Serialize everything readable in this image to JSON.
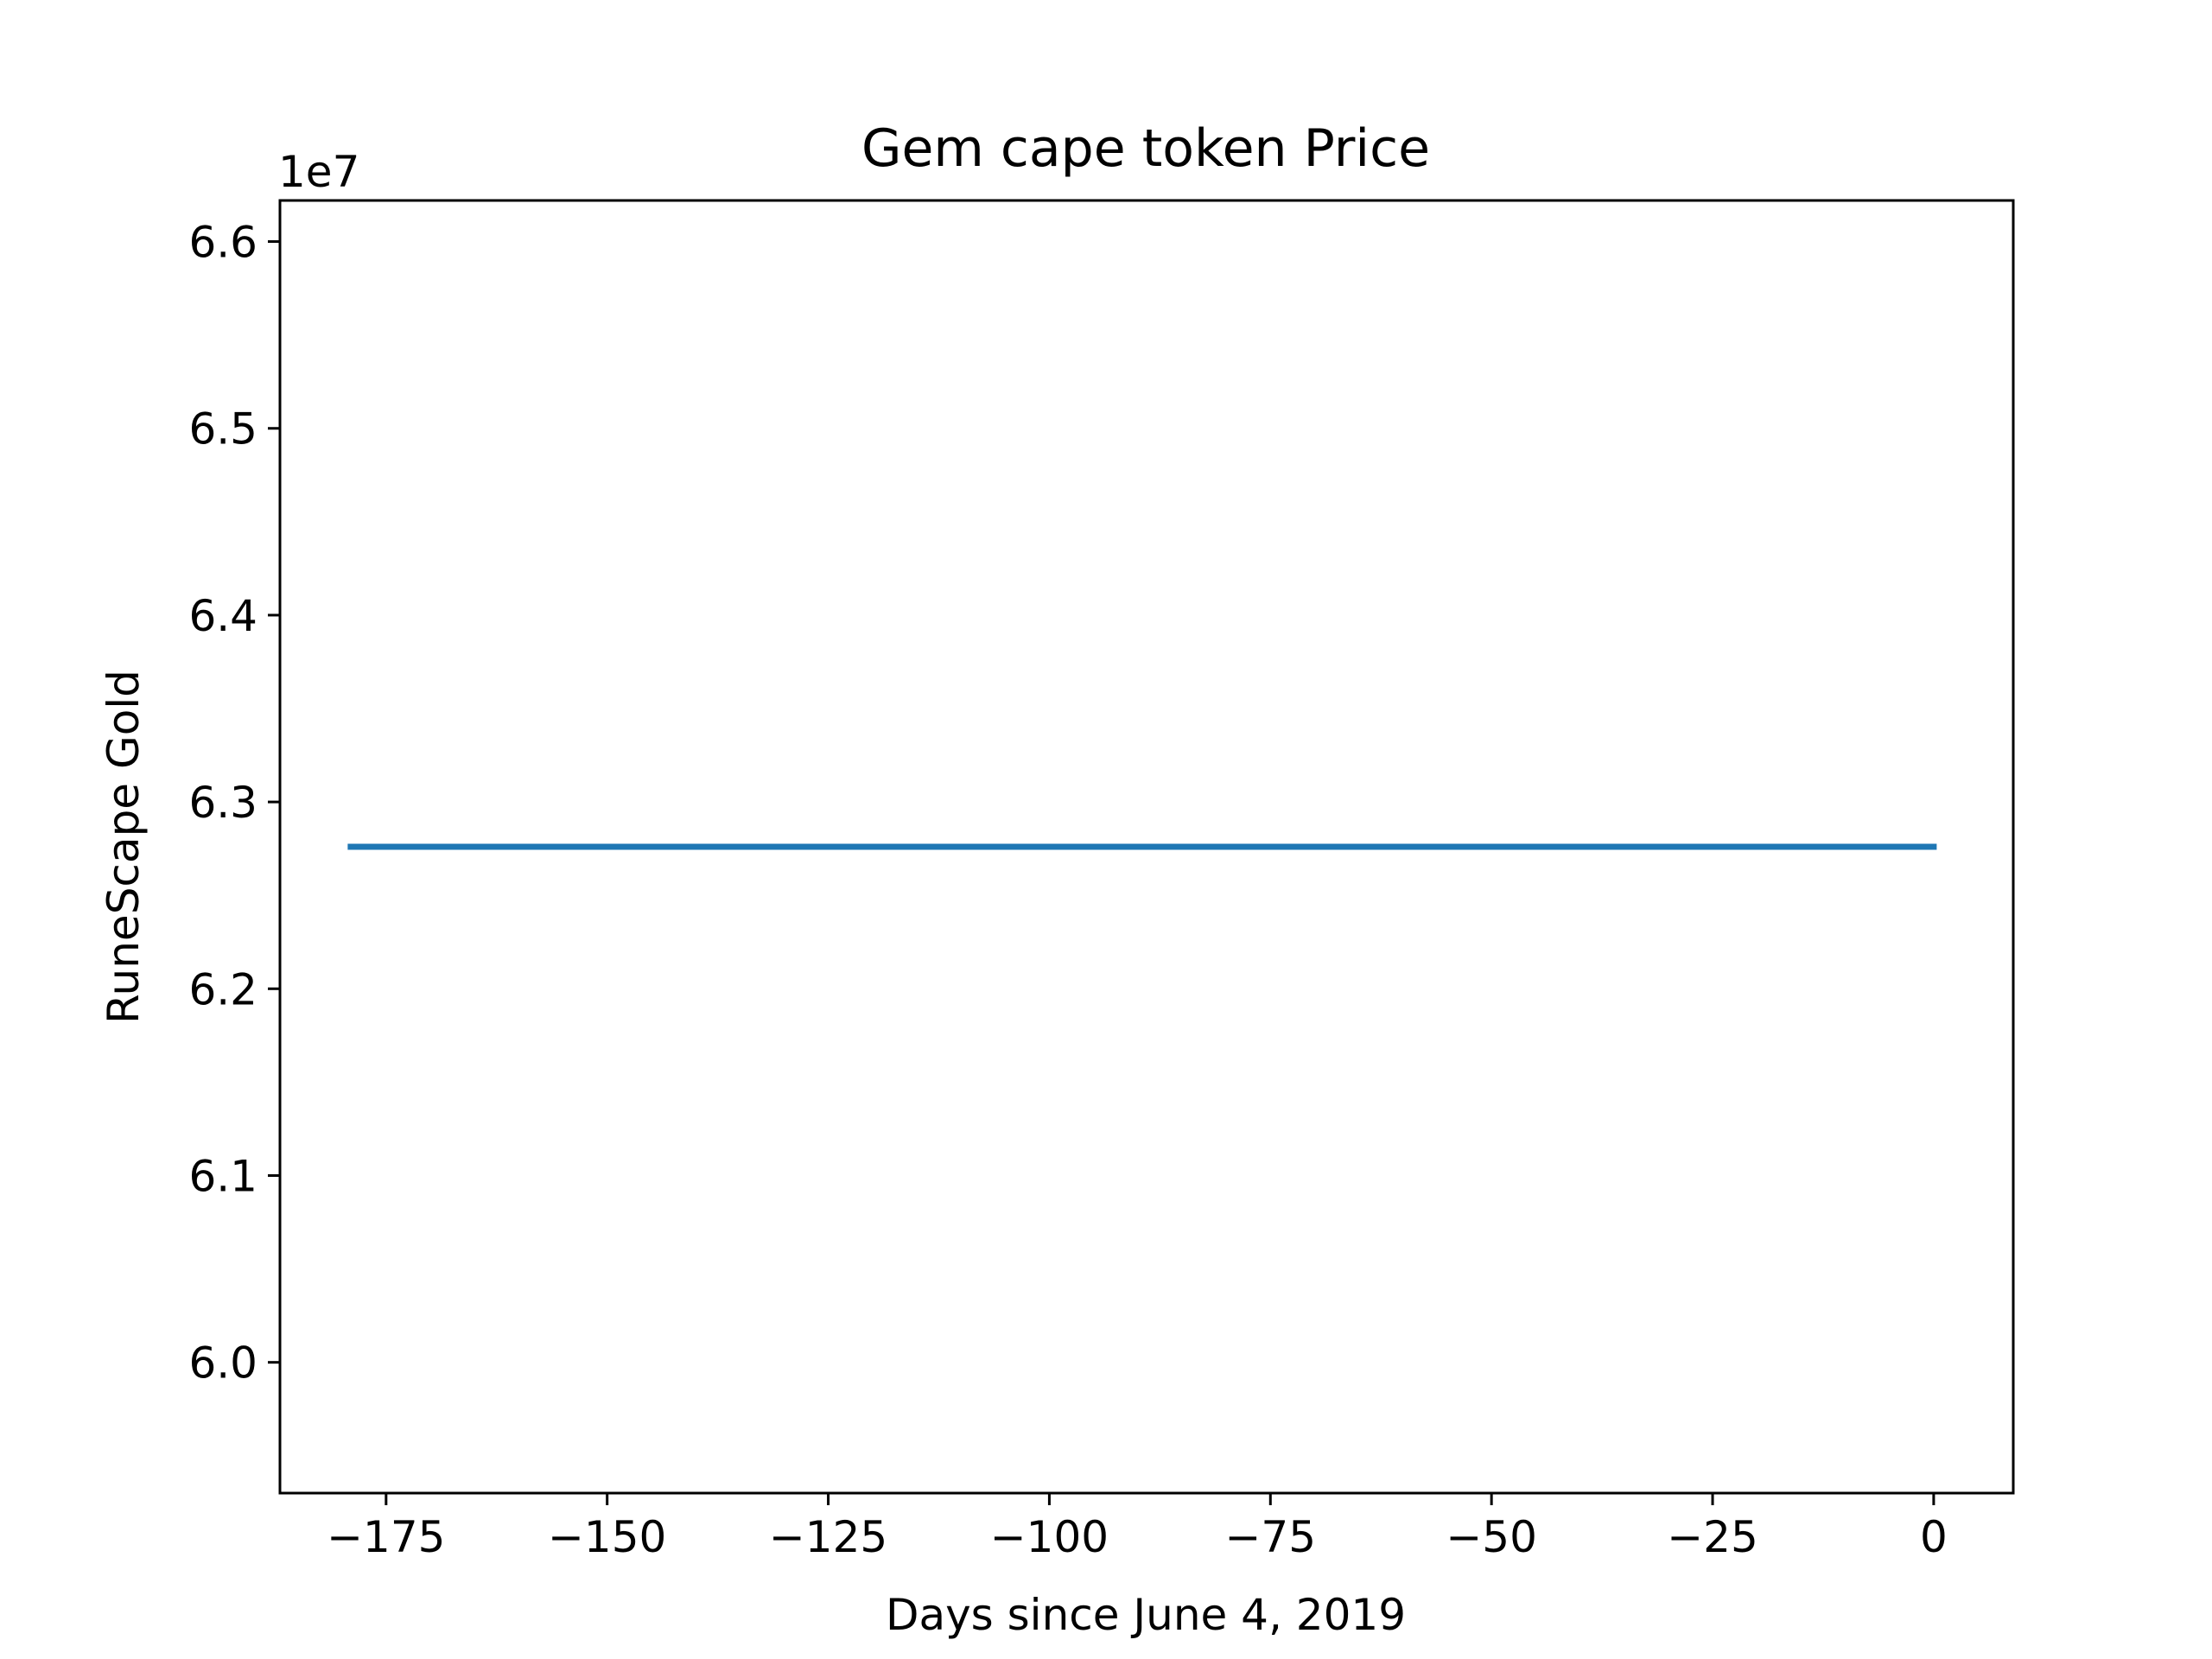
{
  "chart_data": {
    "type": "line",
    "title": "Gem cape token Price",
    "xlabel": "Days since June 4, 2019",
    "ylabel": "RuneScape Gold",
    "y_offset_label": "1e7",
    "xlim": [
      -187,
      9
    ],
    "ylim": [
      5.93,
      6.622
    ],
    "x_ticks": [
      -175,
      -150,
      -125,
      -100,
      -75,
      -50,
      -25,
      0
    ],
    "x_tick_labels": [
      "−175",
      "−150",
      "−125",
      "−100",
      "−75",
      "−50",
      "−25",
      "0"
    ],
    "y_ticks": [
      6.0,
      6.1,
      6.2,
      6.3,
      6.4,
      6.5,
      6.6
    ],
    "y_tick_labels": [
      "6.0",
      "6.1",
      "6.2",
      "6.3",
      "6.4",
      "6.5",
      "6.6"
    ],
    "grid": false,
    "legend": "none",
    "series": [
      {
        "color": "#1f77b4",
        "x": [
          -179,
          0
        ],
        "y": [
          6.276,
          6.276
        ]
      }
    ]
  }
}
